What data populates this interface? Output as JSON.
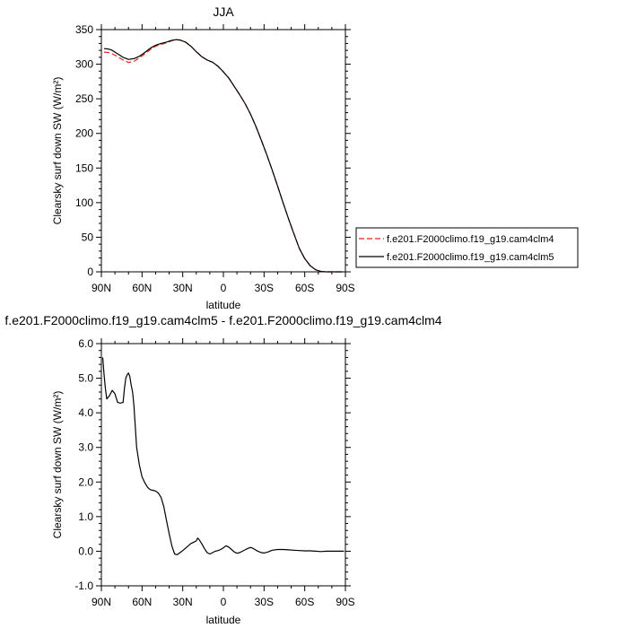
{
  "chart_data": [
    {
      "type": "line",
      "title": "JJA",
      "xlabel": "latitude",
      "ylabel": "Clearsky surf down SW (W/m²)",
      "ylim": [
        0,
        350
      ],
      "xlim": [
        90,
        -90
      ],
      "x_ticks": [
        90,
        60,
        30,
        0,
        -30,
        -60,
        -90
      ],
      "x_tick_labels": [
        "90N",
        "60N",
        "30N",
        "0",
        "30S",
        "60S",
        "90S"
      ],
      "y_ticks": [
        0,
        50,
        100,
        150,
        200,
        250,
        300,
        350
      ],
      "y_tick_labels": [
        "0",
        "50",
        "100",
        "150",
        "200",
        "250",
        "300",
        "350"
      ],
      "grid": false,
      "legend": "outside-right",
      "series": [
        {
          "name": "f.e201.F2000climo.f19_g19.cam4clm4",
          "color": "#e8241c",
          "dash": "dashed",
          "x": [
            88,
            85,
            82,
            78,
            74,
            70,
            66,
            62,
            58,
            54,
            50,
            46,
            42,
            38,
            35,
            32,
            28,
            24,
            20,
            16,
            12,
            8,
            4,
            0,
            -4,
            -8,
            -12,
            -16,
            -20,
            -24,
            -28,
            -32,
            -36,
            -40,
            -44,
            -48,
            -52,
            -56,
            -60,
            -64,
            -68,
            -72,
            -76,
            -80,
            -84,
            -88
          ],
          "y": [
            317.5,
            317,
            315,
            311,
            306,
            302.5,
            304,
            309,
            315,
            321,
            326,
            328.5,
            331,
            334,
            335.5,
            335,
            332,
            326,
            318,
            311,
            306,
            303,
            297,
            289,
            280,
            268,
            256,
            243,
            228,
            210,
            190,
            169,
            147,
            124,
            100,
            77,
            55,
            34,
            19,
            9,
            3,
            0.5,
            0,
            0,
            0,
            0
          ]
        },
        {
          "name": "f.e201.F2000climo.f19_g19.cam4clm5",
          "color": "#000000",
          "dash": "solid",
          "x": [
            88,
            85,
            82,
            78,
            74,
            70,
            66,
            62,
            58,
            54,
            50,
            46,
            42,
            38,
            35,
            32,
            28,
            24,
            20,
            16,
            12,
            8,
            4,
            0,
            -4,
            -8,
            -12,
            -16,
            -20,
            -24,
            -28,
            -32,
            -36,
            -40,
            -44,
            -48,
            -52,
            -56,
            -60,
            -64,
            -68,
            -72,
            -76,
            -80,
            -84,
            -88
          ],
          "y": [
            322.5,
            322,
            320,
            315,
            310,
            307,
            308,
            311.5,
            317,
            323,
            327.5,
            330,
            332,
            334.5,
            335.5,
            335,
            332,
            326,
            318,
            311,
            306,
            303,
            297,
            289,
            280,
            268,
            256,
            243,
            228,
            210,
            190,
            169,
            147,
            124,
            100,
            77,
            55,
            34,
            19,
            9,
            3,
            0.5,
            0,
            0,
            0,
            0
          ]
        }
      ]
    },
    {
      "type": "line",
      "title": "f.e201.F2000climo.f19_g19.cam4clm5 - f.e201.F2000climo.f19_g19.cam4clm4",
      "xlabel": "latitude",
      "ylabel": "Clearsky surf down SW (W/m²)",
      "ylim": [
        -1.0,
        6.0
      ],
      "xlim": [
        90,
        -90
      ],
      "x_ticks": [
        90,
        60,
        30,
        0,
        -30,
        -60,
        -90
      ],
      "x_tick_labels": [
        "90N",
        "60N",
        "30N",
        "0",
        "30S",
        "60S",
        "90S"
      ],
      "y_ticks": [
        -1,
        0,
        1,
        2,
        3,
        4,
        5,
        6
      ],
      "y_tick_labels": [
        "-1.0",
        "0.0",
        "1.0",
        "2.0",
        "3.0",
        "4.0",
        "5.0",
        "6.0"
      ],
      "grid": false,
      "series": [
        {
          "color": "#000000",
          "dash": "solid",
          "x": [
            89,
            88,
            87,
            86,
            84,
            82,
            80,
            78,
            76,
            74,
            73,
            72,
            71,
            70,
            69,
            68,
            67,
            66,
            65,
            64,
            62,
            60,
            58,
            56,
            54,
            52,
            50,
            48,
            46,
            44,
            42,
            40,
            38,
            36,
            34,
            32,
            30,
            27,
            24,
            22,
            20,
            19,
            18,
            16,
            14,
            12,
            10,
            8,
            6,
            4,
            2,
            0,
            -2,
            -4,
            -6,
            -8,
            -10,
            -12,
            -14,
            -16,
            -18,
            -20,
            -22,
            -24,
            -26,
            -28,
            -30,
            -33,
            -36,
            -40,
            -44,
            -48,
            -52,
            -56,
            -60,
            -64,
            -68,
            -72,
            -76,
            -80,
            -85,
            -89
          ],
          "y": [
            5.6,
            5.1,
            4.7,
            4.4,
            4.5,
            4.65,
            4.55,
            4.3,
            4.28,
            4.3,
            4.7,
            5.0,
            5.1,
            5.15,
            5.05,
            4.8,
            4.6,
            4.2,
            3.6,
            3.0,
            2.5,
            2.15,
            1.98,
            1.85,
            1.78,
            1.76,
            1.74,
            1.68,
            1.56,
            1.3,
            0.9,
            0.5,
            0.15,
            -0.08,
            -0.1,
            -0.04,
            0.02,
            0.12,
            0.22,
            0.26,
            0.3,
            0.38,
            0.34,
            0.22,
            0.08,
            -0.04,
            -0.08,
            -0.04,
            0.0,
            0.02,
            0.05,
            0.1,
            0.16,
            0.12,
            0.05,
            -0.02,
            -0.06,
            -0.04,
            0.0,
            0.04,
            0.08,
            0.11,
            0.08,
            0.03,
            -0.01,
            -0.04,
            -0.05,
            -0.02,
            0.03,
            0.05,
            0.05,
            0.04,
            0.03,
            0.02,
            0.01,
            0.01,
            0.0,
            -0.01,
            0.0,
            0.0,
            0.0,
            0.0
          ]
        }
      ]
    }
  ]
}
